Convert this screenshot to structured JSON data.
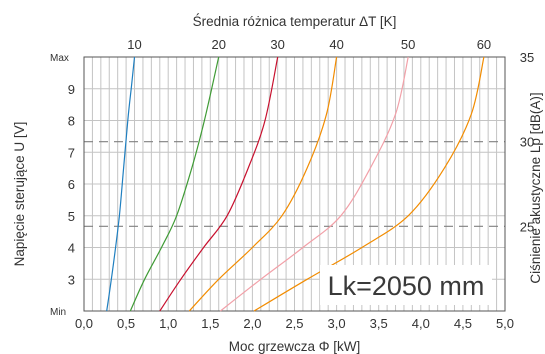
{
  "chart_data": {
    "type": "line",
    "title": "",
    "top_xlabel": "Średnia różnica temperatur ΔT [K]",
    "xlabel": "Moc grzewcza Φ [kW]",
    "ylabel": "Napięcie sterujące U [V]",
    "right_ylabel": "Ciśnienie akustyczne Lp [dB(A)]",
    "annotation": "Lk=2050 mm",
    "xlim": [
      0,
      5
    ],
    "ylim": [
      2,
      10
    ],
    "right_ylim": [
      20,
      35
    ],
    "x_ticks": [
      "0,0",
      "0,5",
      "1,0",
      "1,5",
      "2,0",
      "2,5",
      "3,0",
      "3,5",
      "4,0",
      "4,5",
      "5,0"
    ],
    "x_tick_values": [
      0,
      0.5,
      1,
      1.5,
      2,
      2.5,
      3,
      3.5,
      4,
      4.5,
      5
    ],
    "y_ticks": [
      "Min",
      "3",
      "4",
      "5",
      "6",
      "7",
      "8",
      "9",
      "Max"
    ],
    "y_tick_values": [
      2,
      3,
      4,
      5,
      6,
      7,
      8,
      9,
      10
    ],
    "right_ticks": [
      "25",
      "30",
      "35"
    ],
    "right_tick_values": [
      25,
      30,
      35
    ],
    "dashed_right_values": [
      25,
      30
    ],
    "x_minor_step": 0.1,
    "grid": true,
    "series": [
      {
        "name": "10",
        "color": "#1f7fc0",
        "x": [
          0.27,
          0.35,
          0.42,
          0.47,
          0.52,
          0.56,
          0.6
        ],
        "y": [
          2,
          3.5,
          5,
          6.5,
          8,
          9,
          10
        ]
      },
      {
        "name": "20",
        "color": "#3f9b35",
        "x": [
          0.55,
          0.72,
          0.92,
          1.1,
          1.28,
          1.43,
          1.6
        ],
        "y": [
          2,
          3,
          4,
          5,
          6.5,
          8,
          10
        ]
      },
      {
        "name": "30",
        "color": "#c8102e",
        "x": [
          0.9,
          1.15,
          1.42,
          1.7,
          1.95,
          2.15,
          2.3
        ],
        "y": [
          2,
          3,
          4,
          5,
          6.5,
          8,
          10
        ]
      },
      {
        "name": "40",
        "color": "#f28c00",
        "x": [
          1.25,
          1.6,
          2.0,
          2.35,
          2.65,
          2.88,
          3.0
        ],
        "y": [
          2,
          3,
          4,
          5,
          6.5,
          8.2,
          10
        ]
      },
      {
        "name": "50",
        "color": "#f2a0a8",
        "x": [
          1.62,
          2.1,
          2.6,
          3.05,
          3.4,
          3.7,
          3.85
        ],
        "y": [
          2,
          3,
          4,
          5,
          6.5,
          8.2,
          10
        ]
      },
      {
        "name": "60",
        "color": "#f28c00",
        "x": [
          2.02,
          2.65,
          3.3,
          3.85,
          4.28,
          4.6,
          4.75
        ],
        "y": [
          2,
          3,
          4,
          5,
          6.5,
          8.2,
          10
        ]
      }
    ]
  }
}
